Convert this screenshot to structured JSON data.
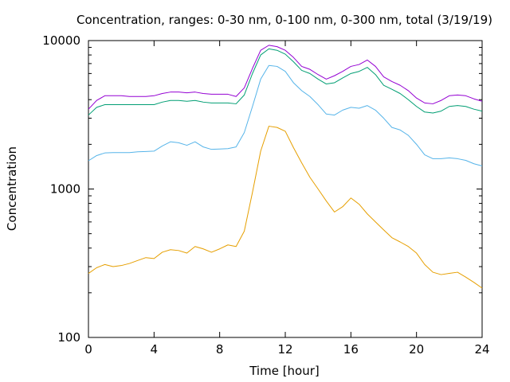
{
  "chart_data": {
    "type": "line",
    "title": "Concentration, ranges: 0-30 nm, 0-100 nm, 0-300 nm, total (3/19/19)",
    "xlabel": "Time [hour]",
    "ylabel": "Concentration",
    "xlim": [
      0,
      24
    ],
    "ylim": [
      100,
      10000
    ],
    "yscale": "log",
    "grid": false,
    "legend": "none",
    "x_ticks": [
      0,
      4,
      8,
      12,
      16,
      20,
      24
    ],
    "x_tick_labels": [
      "0",
      "4",
      "8",
      "12",
      "16",
      "20",
      "24"
    ],
    "y_ticks": [
      100,
      1000,
      10000
    ],
    "y_tick_labels": [
      "100",
      "1000",
      "10000"
    ],
    "series": [
      {
        "color": "#e69f00",
        "x": [
          0,
          0.5,
          1,
          1.5,
          2,
          2.5,
          3,
          3.5,
          4,
          4.5,
          5,
          5.5,
          6,
          6.5,
          7,
          7.5,
          8,
          8.5,
          9,
          9.5,
          10,
          10.5,
          11,
          11.5,
          12,
          12.5,
          13,
          13.5,
          14,
          14.5,
          15,
          15.5,
          16,
          16.5,
          17,
          17.5,
          18,
          18.5,
          19,
          19.5,
          20,
          20.5,
          21,
          21.5,
          22,
          22.5,
          23,
          23.5,
          24
        ],
        "y": [
          270,
          295,
          310,
          300,
          305,
          315,
          330,
          345,
          340,
          375,
          390,
          385,
          370,
          410,
          395,
          375,
          395,
          420,
          410,
          520,
          950,
          1800,
          2650,
          2600,
          2450,
          1900,
          1500,
          1200,
          1000,
          830,
          700,
          760,
          870,
          790,
          680,
          600,
          530,
          470,
          440,
          410,
          370,
          310,
          275,
          265,
          270,
          275,
          255,
          235,
          215
        ]
      },
      {
        "color": "#56b4e9",
        "x": [
          0,
          0.5,
          1,
          1.5,
          2,
          2.5,
          3,
          3.5,
          4,
          4.5,
          5,
          5.5,
          6,
          6.5,
          7,
          7.5,
          8,
          8.5,
          9,
          9.5,
          10,
          10.5,
          11,
          11.5,
          12,
          12.5,
          13,
          13.5,
          14,
          14.5,
          15,
          15.5,
          16,
          16.5,
          17,
          17.5,
          18,
          18.5,
          19,
          19.5,
          20,
          20.5,
          21,
          21.5,
          22,
          22.5,
          23,
          23.5,
          24
        ],
        "y": [
          1550,
          1680,
          1750,
          1760,
          1760,
          1760,
          1780,
          1790,
          1800,
          1950,
          2080,
          2050,
          1970,
          2080,
          1920,
          1850,
          1860,
          1870,
          1920,
          2400,
          3600,
          5500,
          6800,
          6700,
          6200,
          5200,
          4600,
          4200,
          3700,
          3200,
          3150,
          3400,
          3550,
          3500,
          3650,
          3400,
          3000,
          2600,
          2500,
          2300,
          2000,
          1700,
          1600,
          1600,
          1620,
          1600,
          1560,
          1480,
          1430
        ]
      },
      {
        "color": "#009e73",
        "x": [
          0,
          0.5,
          1,
          1.5,
          2,
          2.5,
          3,
          3.5,
          4,
          4.5,
          5,
          5.5,
          6,
          6.5,
          7,
          7.5,
          8,
          8.5,
          9,
          9.5,
          10,
          10.5,
          11,
          11.5,
          12,
          12.5,
          13,
          13.5,
          14,
          14.5,
          15,
          15.5,
          16,
          16.5,
          17,
          17.5,
          18,
          18.5,
          19,
          19.5,
          20,
          20.5,
          21,
          21.5,
          22,
          22.5,
          23,
          23.5,
          24
        ],
        "y": [
          3150,
          3550,
          3700,
          3700,
          3700,
          3700,
          3700,
          3700,
          3700,
          3850,
          3950,
          3950,
          3900,
          3950,
          3850,
          3800,
          3800,
          3800,
          3750,
          4300,
          6000,
          8000,
          8800,
          8600,
          8100,
          7200,
          6300,
          6000,
          5500,
          5100,
          5200,
          5600,
          6000,
          6200,
          6600,
          5900,
          5000,
          4700,
          4400,
          4000,
          3600,
          3300,
          3250,
          3350,
          3600,
          3650,
          3600,
          3450,
          3350
        ]
      },
      {
        "color": "#9400d3",
        "x": [
          0,
          0.5,
          1,
          1.5,
          2,
          2.5,
          3,
          3.5,
          4,
          4.5,
          5,
          5.5,
          6,
          6.5,
          7,
          7.5,
          8,
          8.5,
          9,
          9.5,
          10,
          10.5,
          11,
          11.5,
          12,
          12.5,
          13,
          13.5,
          14,
          14.5,
          15,
          15.5,
          16,
          16.5,
          17,
          17.5,
          18,
          18.5,
          19,
          19.5,
          20,
          20.5,
          21,
          21.5,
          22,
          22.5,
          23,
          23.5,
          24
        ],
        "y": [
          3450,
          3950,
          4250,
          4250,
          4250,
          4200,
          4200,
          4200,
          4250,
          4400,
          4500,
          4500,
          4450,
          4500,
          4400,
          4350,
          4350,
          4350,
          4200,
          4800,
          6500,
          8600,
          9300,
          9100,
          8600,
          7700,
          6700,
          6400,
          5900,
          5500,
          5800,
          6200,
          6700,
          6900,
          7400,
          6700,
          5700,
          5300,
          5000,
          4600,
          4100,
          3800,
          3750,
          3950,
          4250,
          4300,
          4250,
          4050,
          3900
        ]
      }
    ]
  }
}
